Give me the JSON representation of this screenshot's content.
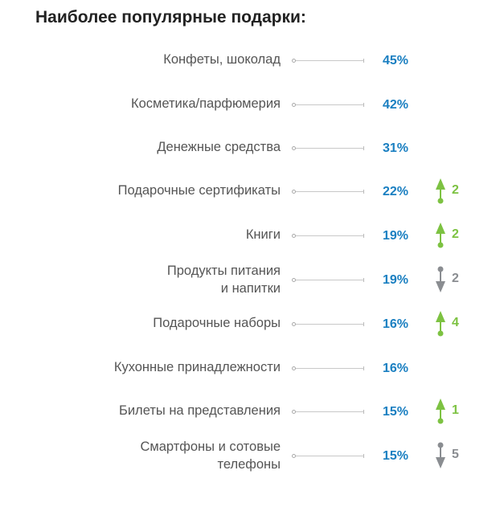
{
  "chart_data": {
    "type": "bar",
    "title": "Наиболее популярные подарки:",
    "categories": [
      "Конфеты, шоколад",
      "Косметика/парфюмерия",
      "Денежные средства",
      "Подарочные сертификаты",
      "Книги",
      "Продукты питания\nи напитки",
      "Подарочные наборы",
      "Кухонные принадлежности",
      "Билеты на представления",
      "Смартфоны и сотовые\nтелефоны"
    ],
    "values": [
      45,
      42,
      31,
      22,
      19,
      19,
      16,
      16,
      15,
      15
    ],
    "value_labels": [
      "45%",
      "42%",
      "31%",
      "22%",
      "19%",
      "19%",
      "16%",
      "16%",
      "15%",
      "15%"
    ],
    "changes": [
      null,
      null,
      null,
      {
        "dir": "up",
        "value": "2"
      },
      {
        "dir": "up",
        "value": "2"
      },
      {
        "dir": "down",
        "value": "2"
      },
      {
        "dir": "up",
        "value": "4"
      },
      null,
      {
        "dir": "up",
        "value": "1"
      },
      {
        "dir": "down",
        "value": "5"
      }
    ],
    "colors": {
      "value": "#1a7fc1",
      "up": "#7dc242",
      "down": "#8a8d91"
    }
  }
}
